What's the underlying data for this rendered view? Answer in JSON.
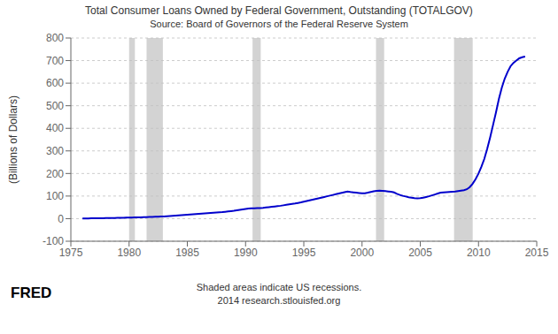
{
  "chart_data": {
    "type": "line",
    "title": "Total Consumer Loans Owned by Federal Government, Outstanding (TOTALGOV)",
    "subtitle": "Source: Board of Governors of the Federal Reserve System",
    "ylabel": "(Billions of Dollars)",
    "annotations": [
      "Shaded areas indicate US recessions.",
      "2014 research.stlouisfed.org",
      "FRED"
    ],
    "x": [
      1976.0,
      1976.25,
      1976.5,
      1976.75,
      1977.0,
      1977.25,
      1977.5,
      1977.75,
      1978.0,
      1978.25,
      1978.5,
      1978.75,
      1979.0,
      1979.25,
      1979.5,
      1979.75,
      1980.0,
      1980.25,
      1980.5,
      1980.75,
      1981.0,
      1981.25,
      1981.5,
      1981.75,
      1982.0,
      1982.25,
      1982.5,
      1982.75,
      1983.0,
      1983.25,
      1983.5,
      1983.75,
      1984.0,
      1984.25,
      1984.5,
      1984.75,
      1985.0,
      1985.25,
      1985.5,
      1985.75,
      1986.0,
      1986.25,
      1986.5,
      1986.75,
      1987.0,
      1987.25,
      1987.5,
      1987.75,
      1988.0,
      1988.25,
      1988.5,
      1988.75,
      1989.0,
      1989.25,
      1989.5,
      1989.75,
      1990.0,
      1990.25,
      1990.5,
      1990.75,
      1991.0,
      1991.25,
      1991.5,
      1991.75,
      1992.0,
      1992.25,
      1992.5,
      1992.75,
      1993.0,
      1993.25,
      1993.5,
      1993.75,
      1994.0,
      1994.25,
      1994.5,
      1994.75,
      1995.0,
      1995.25,
      1995.5,
      1995.75,
      1996.0,
      1996.25,
      1996.5,
      1996.75,
      1997.0,
      1997.25,
      1997.5,
      1997.75,
      1998.0,
      1998.25,
      1998.5,
      1998.75,
      1999.0,
      1999.25,
      1999.5,
      1999.75,
      2000.0,
      2000.25,
      2000.5,
      2000.75,
      2001.0,
      2001.25,
      2001.5,
      2001.75,
      2002.0,
      2002.25,
      2002.5,
      2002.75,
      2003.0,
      2003.25,
      2003.5,
      2003.75,
      2004.0,
      2004.25,
      2004.5,
      2004.75,
      2005.0,
      2005.25,
      2005.5,
      2005.75,
      2006.0,
      2006.25,
      2006.5,
      2006.75,
      2007.0,
      2007.25,
      2007.5,
      2007.75,
      2008.0,
      2008.25,
      2008.5,
      2008.75,
      2009.0,
      2009.25,
      2009.5,
      2009.75,
      2010.0,
      2010.25,
      2010.5,
      2010.75,
      2011.0,
      2011.25,
      2011.5,
      2011.75,
      2012.0,
      2012.25,
      2012.5,
      2012.75,
      2013.0,
      2013.25,
      2013.5,
      2013.75,
      2014.0
    ],
    "values": [
      1.0,
      1.1,
      1.2,
      1.3,
      1.5,
      1.7,
      1.9,
      2.1,
      2.3,
      2.5,
      2.8,
      3.1,
      3.4,
      3.7,
      4.0,
      4.3,
      4.6,
      5.0,
      5.3,
      5.6,
      6.0,
      6.5,
      7.0,
      7.5,
      8.0,
      8.5,
      9.0,
      9.5,
      10.0,
      10.8,
      11.5,
      12.2,
      13.0,
      14.0,
      15.0,
      16.0,
      17.0,
      18.0,
      19.0,
      20.0,
      21.0,
      22.0,
      23.0,
      24.0,
      25.0,
      26.0,
      27.0,
      28.0,
      29.0,
      30.5,
      32.0,
      33.5,
      35.0,
      37.0,
      39.0,
      41.0,
      43.0,
      44.5,
      45.5,
      46.0,
      46.5,
      47.0,
      48.0,
      49.5,
      51.0,
      52.5,
      54.0,
      55.5,
      57.0,
      59.0,
      61.0,
      63.0,
      65.0,
      67.0,
      69.5,
      72.0,
      75.0,
      78.0,
      81.0,
      84.0,
      87.0,
      90.0,
      93.0,
      96.0,
      99.0,
      102.0,
      105.0,
      108.0,
      111.0,
      114.0,
      117.0,
      120.0,
      118.0,
      116.5,
      115.0,
      113.5,
      112.0,
      112.5,
      115.0,
      118.0,
      121.0,
      123.0,
      124.0,
      123.0,
      122.0,
      120.5,
      119.0,
      116.0,
      110.0,
      105.0,
      101.0,
      98.0,
      95.0,
      93.0,
      91.0,
      90.0,
      91.0,
      93.0,
      96.0,
      99.0,
      103.0,
      107.0,
      111.0,
      115.0,
      116.0,
      117.0,
      118.0,
      119.0,
      120.0,
      122.0,
      124.0,
      126.0,
      130.0,
      140.0,
      155.0,
      175.0,
      200.0,
      230.0,
      265.0,
      310.0,
      360.0,
      415.0,
      470.0,
      530.0,
      580.0,
      620.0,
      650.0,
      675.0,
      690.0,
      700.0,
      710.0,
      715.0,
      718.0
    ],
    "color": "#0000cc",
    "recessions": {
      "color": "#c0c0c0",
      "ranges": [
        [
          1980.0,
          1980.5
        ],
        [
          1981.5,
          1982.9
        ],
        [
          1990.6,
          1991.3
        ],
        [
          2001.2,
          2001.9
        ],
        [
          2007.9,
          2009.5
        ]
      ]
    },
    "xlim": [
      1975,
      2015
    ],
    "xticks": [
      1975,
      1980,
      1985,
      1990,
      1995,
      2000,
      2005,
      2010,
      2015
    ],
    "ylim": [
      -100,
      800
    ],
    "yticks": [
      -100,
      0,
      100,
      200,
      300,
      400,
      500,
      600,
      700,
      800
    ],
    "grid": true
  }
}
